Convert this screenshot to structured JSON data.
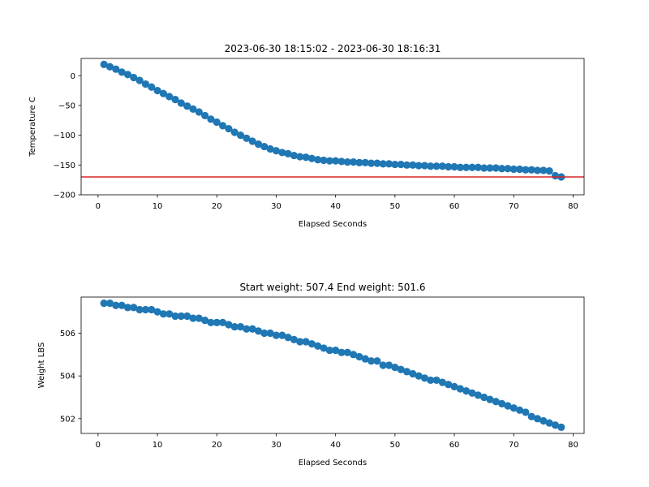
{
  "colors": {
    "series": "#1f77b4",
    "refline": "#d62728"
  },
  "chart_data": [
    {
      "type": "scatter",
      "title": "2023-06-30 18:15:02 - 2023-06-30 18:16:31",
      "xlabel": "Elapsed Seconds",
      "ylabel": "Temperature C",
      "xlim": [
        -2.85,
        81.85
      ],
      "ylim": [
        -200,
        29
      ],
      "xticks": [
        0,
        10,
        20,
        30,
        40,
        50,
        60,
        70,
        80
      ],
      "yticks": [
        -200,
        -150,
        -100,
        -50,
        0
      ],
      "grid": false,
      "hline": -170,
      "x": [
        1,
        2,
        3,
        4,
        5,
        6,
        7,
        8,
        9,
        10,
        11,
        12,
        13,
        14,
        15,
        16,
        17,
        18,
        19,
        20,
        21,
        22,
        23,
        24,
        25,
        26,
        27,
        28,
        29,
        30,
        31,
        32,
        33,
        34,
        35,
        36,
        37,
        38,
        39,
        40,
        41,
        42,
        43,
        44,
        45,
        46,
        47,
        48,
        49,
        50,
        51,
        52,
        53,
        54,
        55,
        56,
        57,
        58,
        59,
        60,
        61,
        62,
        63,
        64,
        65,
        66,
        67,
        68,
        69,
        70,
        71,
        72,
        73,
        74,
        75,
        76,
        77,
        78
      ],
      "y": [
        19,
        15,
        11,
        6,
        2,
        -3,
        -8,
        -14,
        -19,
        -25,
        -30,
        -35,
        -40,
        -46,
        -51,
        -56,
        -61,
        -67,
        -73,
        -78,
        -84,
        -89,
        -95,
        -100,
        -105,
        -110,
        -115,
        -119,
        -123,
        -126,
        -129,
        -131,
        -134,
        -136,
        -137,
        -139,
        -141,
        -142,
        -143,
        -143,
        -144,
        -145,
        -145,
        -146,
        -146,
        -147,
        -147,
        -148,
        -148,
        -149,
        -149,
        -150,
        -150,
        -151,
        -151,
        -152,
        -152,
        -152,
        -153,
        -153,
        -154,
        -154,
        -154,
        -154,
        -155,
        -155,
        -155,
        -156,
        -156,
        -157,
        -157,
        -158,
        -158,
        -159,
        -159,
        -160,
        -168,
        -170
      ]
    },
    {
      "type": "scatter",
      "title": "Start weight: 507.4 End weight: 501.6",
      "xlabel": "Elapsed Seconds",
      "ylabel": "Weight LBS",
      "xlim": [
        -2.85,
        81.85
      ],
      "ylim": [
        501.31,
        507.69
      ],
      "xticks": [
        0,
        10,
        20,
        30,
        40,
        50,
        60,
        70,
        80
      ],
      "yticks": [
        502,
        504,
        506
      ],
      "grid": false,
      "x": [
        1,
        2,
        3,
        4,
        5,
        6,
        7,
        8,
        9,
        10,
        11,
        12,
        13,
        14,
        15,
        16,
        17,
        18,
        19,
        20,
        21,
        22,
        23,
        24,
        25,
        26,
        27,
        28,
        29,
        30,
        31,
        32,
        33,
        34,
        35,
        36,
        37,
        38,
        39,
        40,
        41,
        42,
        43,
        44,
        45,
        46,
        47,
        48,
        49,
        50,
        51,
        52,
        53,
        54,
        55,
        56,
        57,
        58,
        59,
        60,
        61,
        62,
        63,
        64,
        65,
        66,
        67,
        68,
        69,
        70,
        71,
        72,
        73,
        74,
        75,
        76,
        77,
        78
      ],
      "y": [
        507.4,
        507.4,
        507.3,
        507.3,
        507.2,
        507.2,
        507.1,
        507.1,
        507.1,
        507.0,
        506.9,
        506.9,
        506.8,
        506.8,
        506.8,
        506.7,
        506.7,
        506.6,
        506.5,
        506.5,
        506.5,
        506.4,
        506.3,
        506.3,
        506.2,
        506.2,
        506.1,
        506.0,
        506.0,
        505.9,
        505.9,
        505.8,
        505.7,
        505.6,
        505.6,
        505.5,
        505.4,
        505.3,
        505.2,
        505.2,
        505.1,
        505.1,
        505.0,
        504.9,
        504.8,
        504.7,
        504.7,
        504.5,
        504.5,
        504.4,
        504.3,
        504.2,
        504.1,
        504.0,
        503.9,
        503.8,
        503.8,
        503.7,
        503.6,
        503.5,
        503.4,
        503.3,
        503.2,
        503.1,
        503.0,
        502.9,
        502.8,
        502.7,
        502.6,
        502.5,
        502.4,
        502.3,
        502.1,
        502.0,
        501.9,
        501.8,
        501.7,
        501.6
      ]
    }
  ]
}
